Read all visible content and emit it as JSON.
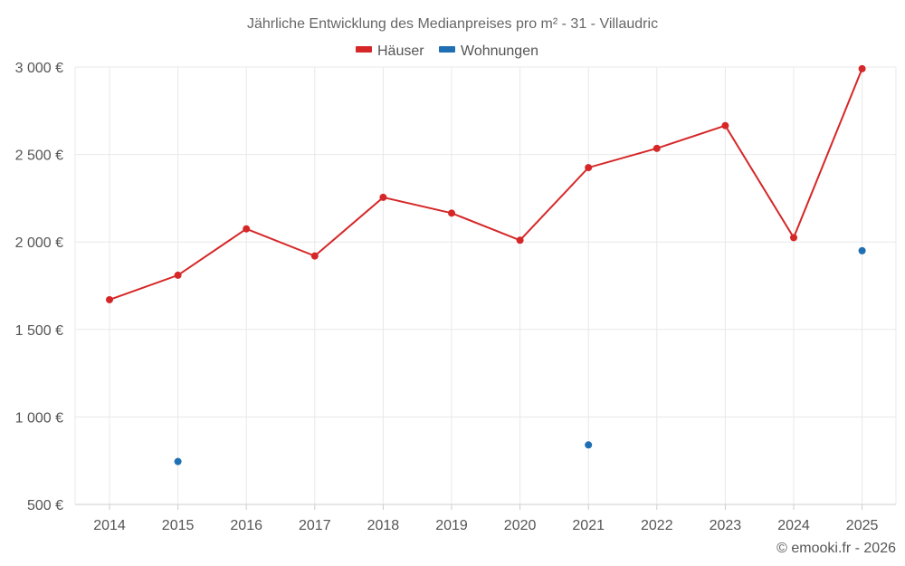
{
  "chart_data": {
    "type": "line",
    "title": "Jährliche Entwicklung des Medianpreises pro m² - 31 - Villaudric",
    "categories": [
      "2014",
      "2015",
      "2016",
      "2017",
      "2018",
      "2019",
      "2020",
      "2021",
      "2022",
      "2023",
      "2024",
      "2025"
    ],
    "y_tick_labels": [
      "3 000 €",
      "2 500 €",
      "2 000 €",
      "1 500 €",
      "1 000 €",
      "500 €"
    ],
    "y_tick_values": [
      3000,
      2500,
      2000,
      1500,
      1000,
      500
    ],
    "ylim": [
      500,
      3000
    ],
    "legend_position": "top-center",
    "series": [
      {
        "name": "Häuser",
        "color": "#d62728",
        "values": [
          1670,
          1810,
          2075,
          1920,
          2255,
          2165,
          2010,
          2425,
          2535,
          2665,
          2025,
          2990
        ]
      },
      {
        "name": "Wohnungen",
        "color": "#1f6fb2",
        "values": [
          null,
          745,
          null,
          null,
          null,
          null,
          null,
          840,
          null,
          null,
          null,
          1950
        ]
      }
    ]
  },
  "credit": "© emooki.fr - 2026"
}
